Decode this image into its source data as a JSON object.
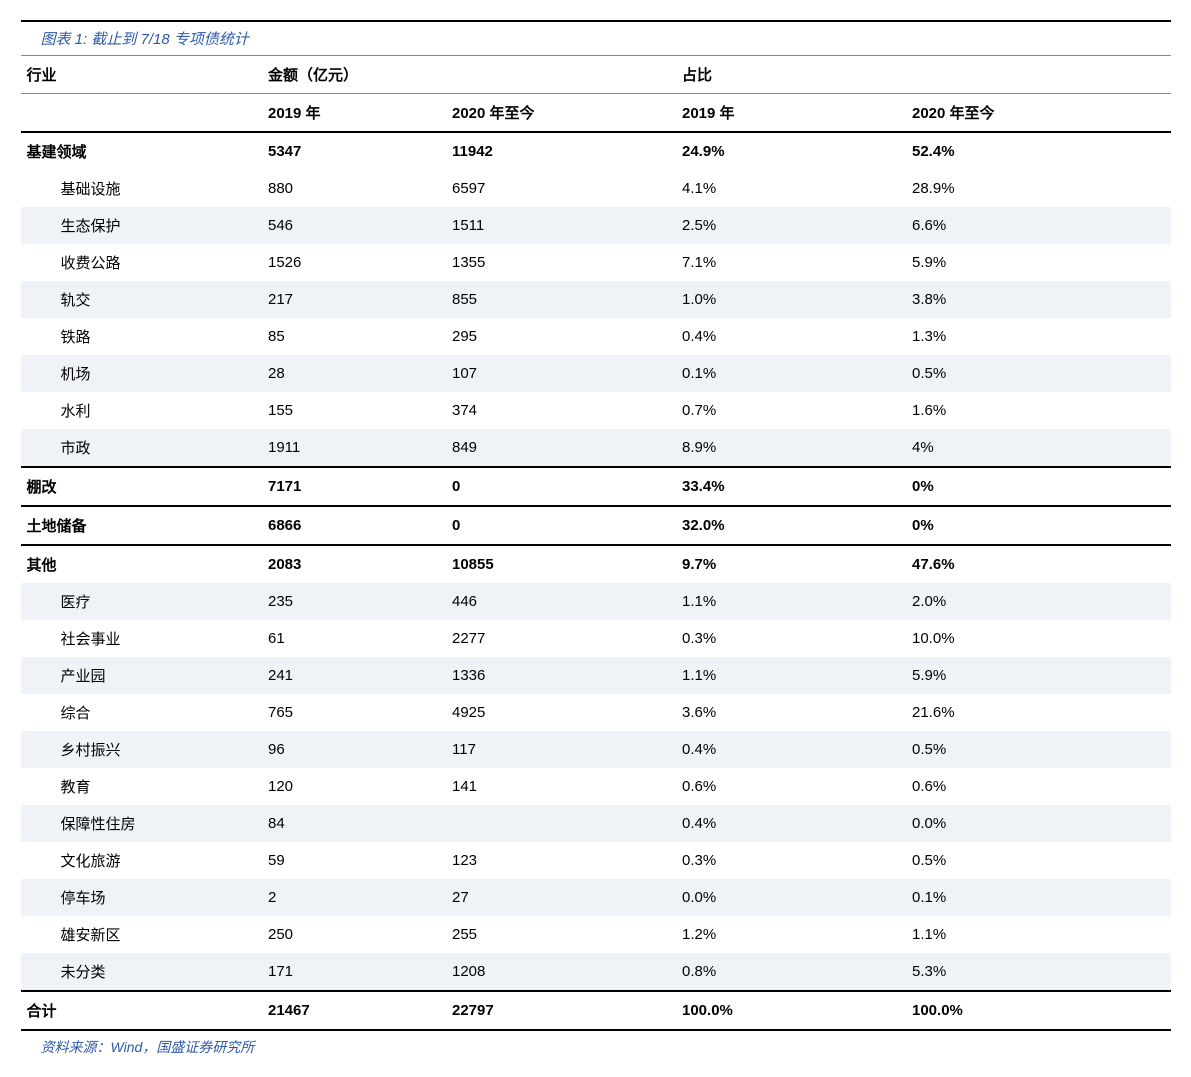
{
  "caption": "图表 1: 截止到 7/18 专项债统计",
  "source": "资料来源：Wind，国盛证券研究所",
  "header1": {
    "c0": "行业",
    "c1": "金额（亿元）",
    "c2": "占比"
  },
  "header2": {
    "c1": "2019 年",
    "c2": "2020 年至今",
    "c3": "2019 年",
    "c4": "2020 年至今"
  },
  "rows": [
    {
      "cls": "cat divider",
      "c0": "基建领域",
      "c1": "5347",
      "c2": "11942",
      "c3": "24.9%",
      "c4": "52.4%"
    },
    {
      "cls": "sub",
      "c0": "基础设施",
      "c1": "880",
      "c2": "6597",
      "c3": "4.1%",
      "c4": "28.9%"
    },
    {
      "cls": "sub alt",
      "c0": "生态保护",
      "c1": "546",
      "c2": "1511",
      "c3": "2.5%",
      "c4": "6.6%"
    },
    {
      "cls": "sub",
      "c0": "收费公路",
      "c1": "1526",
      "c2": "1355",
      "c3": "7.1%",
      "c4": "5.9%"
    },
    {
      "cls": "sub alt",
      "c0": "轨交",
      "c1": "217",
      "c2": "855",
      "c3": "1.0%",
      "c4": "3.8%"
    },
    {
      "cls": "sub",
      "c0": "铁路",
      "c1": "85",
      "c2": "295",
      "c3": "0.4%",
      "c4": "1.3%"
    },
    {
      "cls": "sub alt",
      "c0": "机场",
      "c1": "28",
      "c2": "107",
      "c3": "0.1%",
      "c4": "0.5%"
    },
    {
      "cls": "sub",
      "c0": "水利",
      "c1": "155",
      "c2": "374",
      "c3": "0.7%",
      "c4": "1.6%"
    },
    {
      "cls": "sub alt",
      "c0": "市政",
      "c1": "1911",
      "c2": "849",
      "c3": "8.9%",
      "c4": "4%"
    },
    {
      "cls": "cat divider",
      "c0": "棚改",
      "c1": "7171",
      "c2": "0",
      "c3": "33.4%",
      "c4": "0%"
    },
    {
      "cls": "cat divider",
      "c0": "土地储备",
      "c1": "6866",
      "c2": "0",
      "c3": "32.0%",
      "c4": "0%"
    },
    {
      "cls": "cat divider",
      "c0": "其他",
      "c1": "2083",
      "c2": "10855",
      "c3": "9.7%",
      "c4": "47.6%"
    },
    {
      "cls": "sub alt",
      "c0": "医疗",
      "c1": "235",
      "c2": "446",
      "c3": "1.1%",
      "c4": "2.0%"
    },
    {
      "cls": "sub",
      "c0": "社会事业",
      "c1": "61",
      "c2": "2277",
      "c3": "0.3%",
      "c4": "10.0%"
    },
    {
      "cls": "sub alt",
      "c0": "产业园",
      "c1": "241",
      "c2": "1336",
      "c3": "1.1%",
      "c4": "5.9%"
    },
    {
      "cls": "sub",
      "c0": "综合",
      "c1": "765",
      "c2": "4925",
      "c3": "3.6%",
      "c4": "21.6%"
    },
    {
      "cls": "sub alt",
      "c0": "乡村振兴",
      "c1": "96",
      "c2": "117",
      "c3": "0.4%",
      "c4": "0.5%"
    },
    {
      "cls": "sub",
      "c0": "教育",
      "c1": "120",
      "c2": "141",
      "c3": "0.6%",
      "c4": "0.6%"
    },
    {
      "cls": "sub alt",
      "c0": "保障性住房",
      "c1": "84",
      "c2": "",
      "c3": "0.4%",
      "c4": "0.0%"
    },
    {
      "cls": "sub",
      "c0": "文化旅游",
      "c1": "59",
      "c2": "123",
      "c3": "0.3%",
      "c4": "0.5%"
    },
    {
      "cls": "sub alt",
      "c0": "停车场",
      "c1": "2",
      "c2": "27",
      "c3": "0.0%",
      "c4": "0.1%"
    },
    {
      "cls": "sub",
      "c0": "雄安新区",
      "c1": "250",
      "c2": "255",
      "c3": "1.2%",
      "c4": "1.1%"
    },
    {
      "cls": "sub alt",
      "c0": "未分类",
      "c1": "171",
      "c2": "1208",
      "c3": "0.8%",
      "c4": "5.3%"
    },
    {
      "cls": "total",
      "c0": "合计",
      "c1": "21467",
      "c2": "22797",
      "c3": "100.0%",
      "c4": "100.0%"
    }
  ]
}
